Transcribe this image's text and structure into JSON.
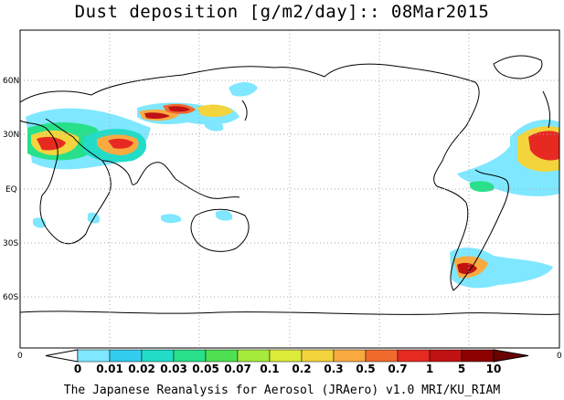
{
  "title": "Dust deposition [g/m2/day]:: 08Mar2015",
  "footer": "The Japanese Reanalysis for Aerosol (JRAero) v1.0 MRI/KU_RIAM",
  "lat_labels": [
    "60N",
    "30N",
    "EQ",
    "30S",
    "60S"
  ],
  "edge_labels": {
    "left": "0",
    "right": "0"
  },
  "colorbar": {
    "labels": [
      "0",
      "0.01",
      "0.02",
      "0.03",
      "0.05",
      "0.07",
      "0.1",
      "0.2",
      "0.3",
      "0.5",
      "0.7",
      "1",
      "5",
      "10"
    ],
    "colors": [
      "#ffffff",
      "#7fe7ff",
      "#33ccee",
      "#22dcc8",
      "#28e08a",
      "#4ee052",
      "#a6ea3c",
      "#dcea3a",
      "#f4d43c",
      "#f8aa40",
      "#f06a2e",
      "#e62a22",
      "#c01212",
      "#8c0000"
    ],
    "over_color": "#6a0000"
  },
  "map": {
    "frame_color": "#000000",
    "grid_color": "#aaaaaa",
    "land_outline_color": "#000000"
  }
}
